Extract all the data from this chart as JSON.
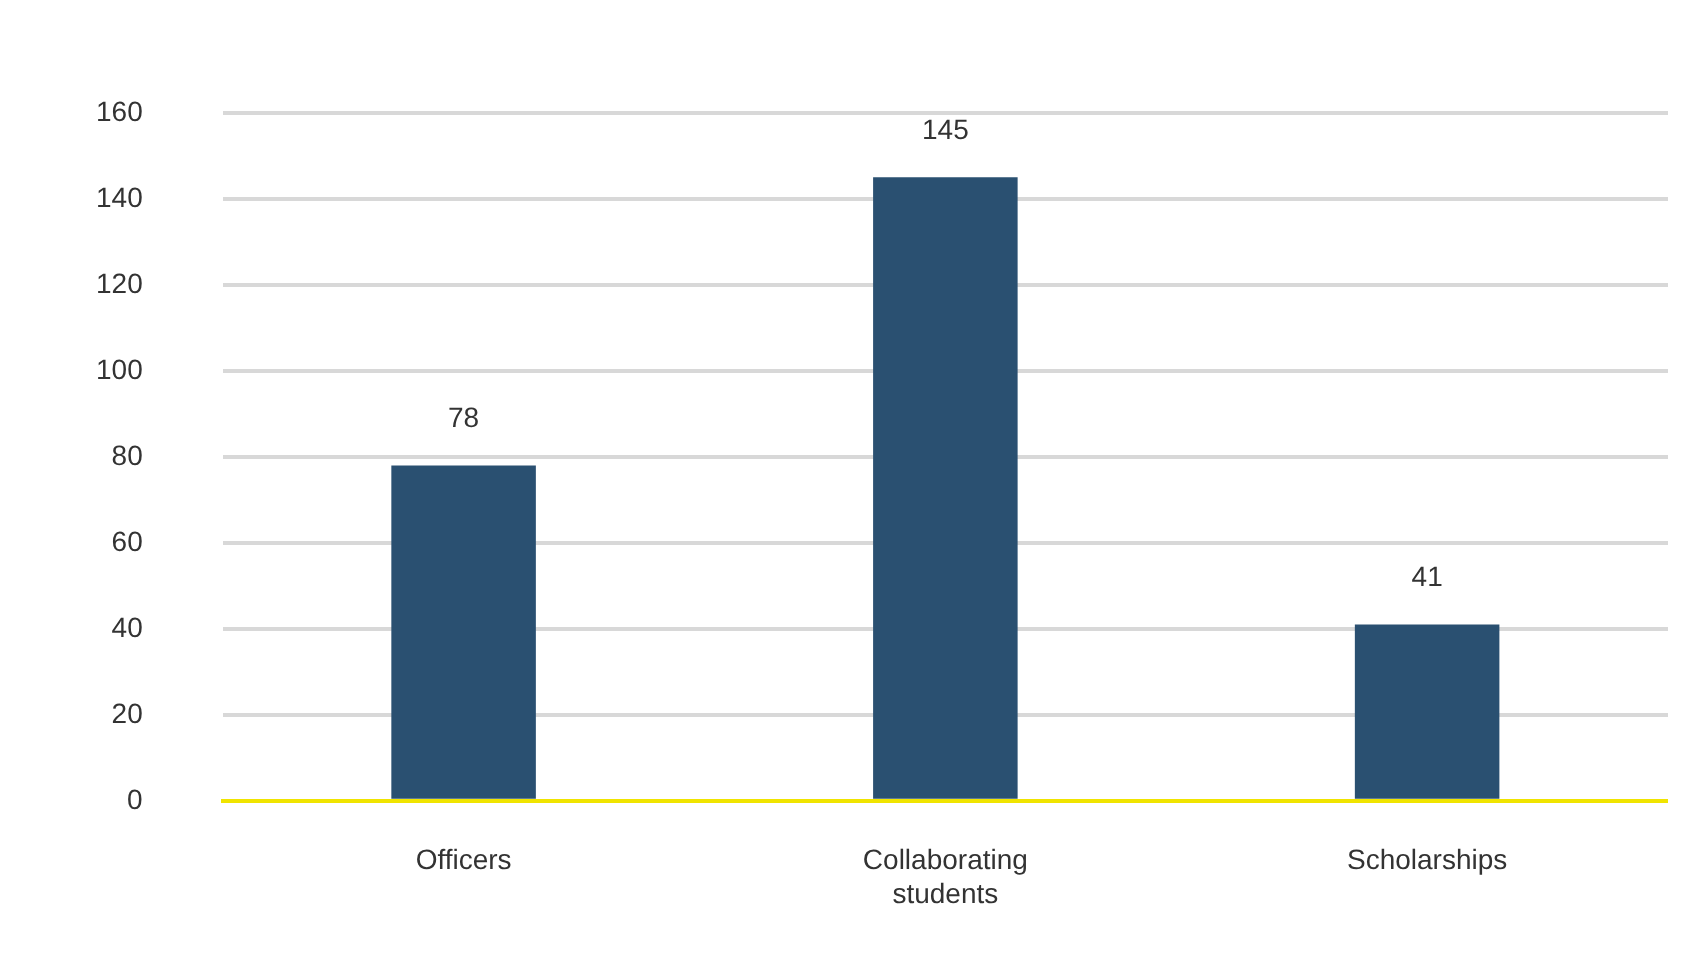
{
  "chart_data": {
    "type": "bar",
    "categories": [
      "Officers",
      "Collaborating students",
      "Scholarships"
    ],
    "values": [
      78,
      145,
      41
    ],
    "color": "#2a5071",
    "ylim": [
      0,
      160
    ],
    "yticks": [
      0,
      20,
      40,
      60,
      80,
      100,
      120,
      140,
      160
    ],
    "grid": "y",
    "data_labels": true,
    "legend": false
  }
}
